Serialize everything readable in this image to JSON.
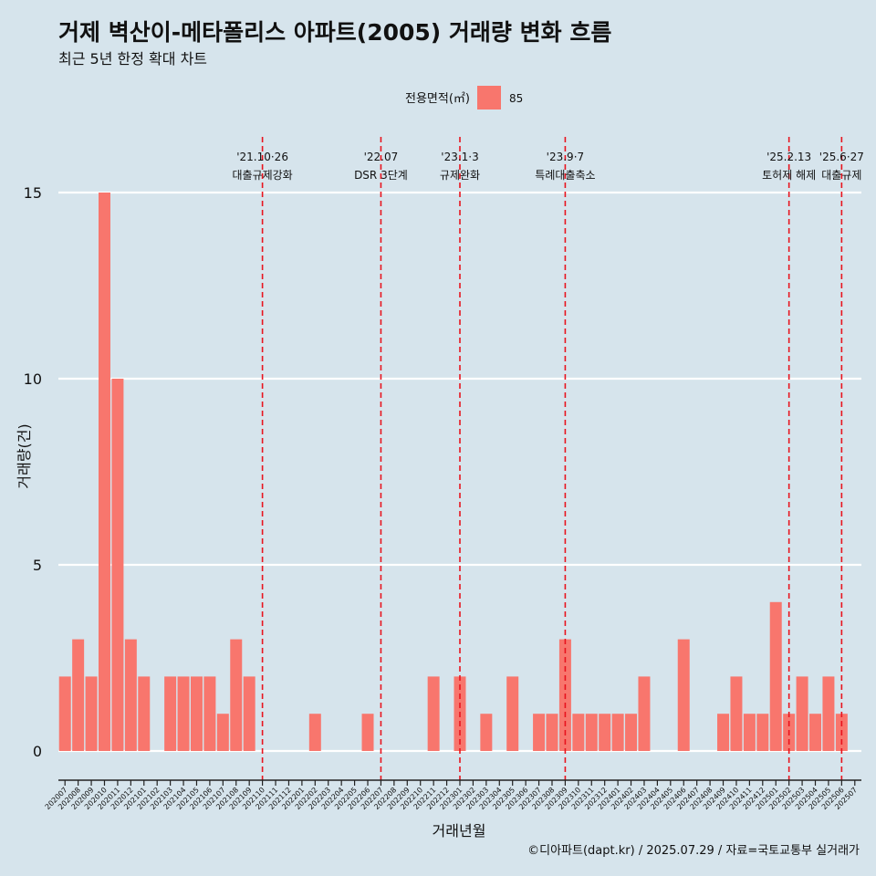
{
  "chart_data": {
    "type": "bar",
    "title": "거제 벽산이-메타폴리스 아파트(2005) 거래량 변화 흐름",
    "subtitle": "최근 5년 한정 확대 차트",
    "xlabel": "거래년월",
    "ylabel": "거래량(건)",
    "caption": "©디아파트(dapt.kr) / 2025.07.29 / 자료=국토교통부 실거래가",
    "legend": {
      "title": "전용면적(㎡)",
      "position": "top",
      "entries": [
        {
          "label": "85",
          "color": "#f8766d"
        }
      ]
    },
    "ylim": [
      0,
      16.5
    ],
    "yticks": [
      0,
      5,
      10,
      15
    ],
    "grid": true,
    "categories": [
      "202007",
      "202008",
      "202009",
      "202010",
      "202011",
      "202012",
      "202101",
      "202102",
      "202103",
      "202104",
      "202105",
      "202106",
      "202107",
      "202108",
      "202109",
      "202110",
      "202111",
      "202112",
      "202201",
      "202202",
      "202203",
      "202204",
      "202205",
      "202206",
      "202207",
      "202208",
      "202209",
      "202210",
      "202211",
      "202212",
      "202301",
      "202302",
      "202303",
      "202304",
      "202305",
      "202306",
      "202307",
      "202308",
      "202309",
      "202310",
      "202311",
      "202312",
      "202401",
      "202402",
      "202403",
      "202404",
      "202405",
      "202406",
      "202407",
      "202408",
      "202409",
      "202410",
      "202411",
      "202412",
      "202501",
      "202502",
      "202503",
      "202504",
      "202505",
      "202506",
      "202507"
    ],
    "series": [
      {
        "name": "85",
        "color": "#f8766d",
        "values": [
          2,
          3,
          2,
          15,
          10,
          3,
          2,
          0,
          2,
          2,
          2,
          2,
          1,
          3,
          2,
          0,
          0,
          0,
          0,
          1,
          0,
          0,
          0,
          1,
          0,
          0,
          0,
          0,
          2,
          0,
          2,
          0,
          1,
          0,
          2,
          0,
          1,
          1,
          3,
          1,
          1,
          1,
          1,
          1,
          2,
          0,
          0,
          3,
          0,
          0,
          1,
          2,
          1,
          1,
          4,
          1,
          2,
          1,
          2,
          1,
          0
        ]
      }
    ],
    "annotations": [
      {
        "category": "202110",
        "line1": "'21.10·26",
        "line2": "대출규제강화"
      },
      {
        "category": "202207",
        "line1": "'22.07",
        "line2": "DSR 3단계"
      },
      {
        "category": "202301",
        "line1": "'23.1·3",
        "line2": "규제완화"
      },
      {
        "category": "202309",
        "line1": "'23.9·7",
        "line2": "특례대출축소"
      },
      {
        "category": "202502",
        "line1": "'25.2.13",
        "line2": "토허제 해제"
      },
      {
        "category": "202506",
        "line1": "'25.6·27",
        "line2": "대출규제"
      }
    ],
    "line_color": "#e8141e"
  }
}
